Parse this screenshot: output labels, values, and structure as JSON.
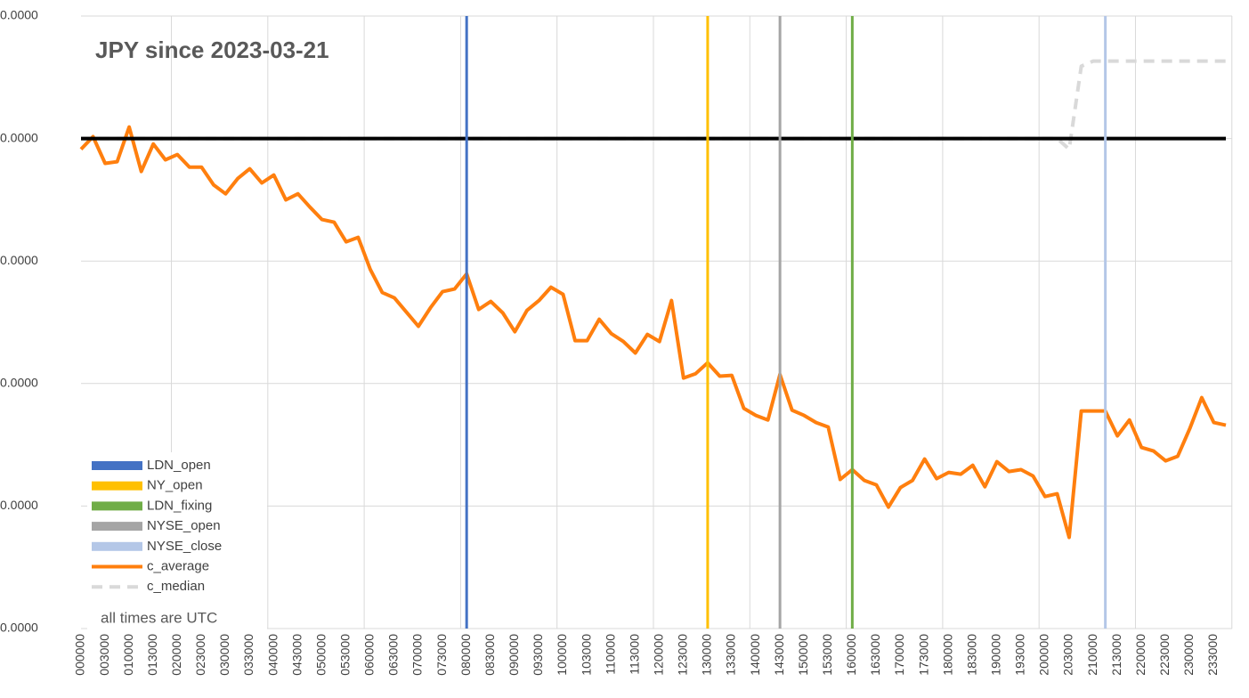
{
  "chart_data": {
    "type": "line",
    "title": "JPY since 2023-03-21",
    "annotation": "all times are UTC",
    "categories": [
      "000000",
      null,
      "003000",
      null,
      "010000",
      null,
      "013000",
      null,
      "020000",
      null,
      "023000",
      null,
      "030000",
      null,
      "033000",
      null,
      "040000",
      null,
      "043000",
      null,
      "050000",
      null,
      "053000",
      null,
      "060000",
      null,
      "063000",
      null,
      "070000",
      null,
      "073000",
      null,
      "080000",
      null,
      "083000",
      null,
      "090000",
      null,
      "093000",
      null,
      "100000",
      null,
      "103000",
      null,
      "110000",
      null,
      "113000",
      null,
      "120000",
      null,
      "123000",
      null,
      "130000",
      null,
      "133000",
      null,
      "140000",
      null,
      "143000",
      null,
      "150000",
      null,
      "153000",
      null,
      "160000",
      null,
      "163000",
      null,
      "170000",
      null,
      "173000",
      null,
      "180000",
      null,
      "183000",
      null,
      "190000",
      null,
      "193000",
      null,
      "200000",
      null,
      "203000",
      null,
      "210000",
      null,
      "213000",
      null,
      "220000",
      null,
      "223000",
      null,
      "230000",
      null,
      "233000",
      null
    ],
    "ylim": [
      -4e-05,
      1e-05
    ],
    "yticks": [
      {
        "value": 1e-05,
        "label": "0.0000"
      },
      {
        "value": 0,
        "label": "0.0000"
      },
      {
        "value": -1e-05,
        "label": "0.0000"
      },
      {
        "value": -2e-05,
        "label": "0.0000"
      },
      {
        "value": -3e-05,
        "label": "0.0000"
      },
      {
        "value": -4e-05,
        "label": "0.0000"
      }
    ],
    "grid": true,
    "reference_line": {
      "value": 0,
      "color": "#000000"
    },
    "legend": "bottom-left",
    "series": [
      {
        "name": "LDN_open",
        "kind": "bar",
        "color": "#4472c4",
        "values": [
          null,
          null,
          null,
          null,
          null,
          null,
          null,
          null,
          null,
          null,
          null,
          null,
          null,
          null,
          null,
          null,
          null,
          null,
          null,
          null,
          null,
          null,
          null,
          null,
          null,
          null,
          null,
          null,
          null,
          null,
          null,
          null,
          1e-05,
          null,
          null,
          null,
          null,
          null,
          null,
          null,
          null,
          null,
          null,
          null,
          null,
          null,
          null,
          null,
          null,
          null,
          null,
          null,
          null,
          null,
          null,
          null,
          null,
          null,
          null,
          null,
          null,
          null,
          null,
          null,
          null,
          null,
          null,
          null,
          null,
          null,
          null,
          null,
          null,
          null,
          null,
          null,
          null,
          null,
          null,
          null,
          null,
          null,
          null,
          null,
          null,
          null,
          null,
          null,
          null,
          null,
          null,
          null,
          null,
          null,
          null,
          null
        ]
      },
      {
        "name": "NY_open",
        "kind": "bar",
        "color": "#ffc000",
        "values": [
          null,
          null,
          null,
          null,
          null,
          null,
          null,
          null,
          null,
          null,
          null,
          null,
          null,
          null,
          null,
          null,
          null,
          null,
          null,
          null,
          null,
          null,
          null,
          null,
          null,
          null,
          null,
          null,
          null,
          null,
          null,
          null,
          null,
          null,
          null,
          null,
          null,
          null,
          null,
          null,
          null,
          null,
          null,
          null,
          null,
          null,
          null,
          null,
          null,
          null,
          null,
          null,
          1e-05,
          null,
          null,
          null,
          null,
          null,
          null,
          null,
          null,
          null,
          null,
          null,
          null,
          null,
          null,
          null,
          null,
          null,
          null,
          null,
          null,
          null,
          null,
          null,
          null,
          null,
          null,
          null,
          null,
          null,
          null,
          null,
          null,
          null,
          null,
          null,
          null,
          null,
          null,
          null,
          null,
          null,
          null,
          null
        ]
      },
      {
        "name": "LDN_fixing",
        "kind": "bar",
        "color": "#70ad47",
        "values": [
          null,
          null,
          null,
          null,
          null,
          null,
          null,
          null,
          null,
          null,
          null,
          null,
          null,
          null,
          null,
          null,
          null,
          null,
          null,
          null,
          null,
          null,
          null,
          null,
          null,
          null,
          null,
          null,
          null,
          null,
          null,
          null,
          null,
          null,
          null,
          null,
          null,
          null,
          null,
          null,
          null,
          null,
          null,
          null,
          null,
          null,
          null,
          null,
          null,
          null,
          null,
          null,
          null,
          null,
          null,
          null,
          null,
          null,
          null,
          null,
          null,
          null,
          null,
          null,
          1e-05,
          null,
          null,
          null,
          null,
          null,
          null,
          null,
          null,
          null,
          null,
          null,
          null,
          null,
          null,
          null,
          null,
          null,
          null,
          null,
          null,
          null,
          null,
          null,
          null,
          null,
          null,
          null,
          null,
          null,
          null,
          null
        ]
      },
      {
        "name": "NYSE_open",
        "kind": "bar",
        "color": "#a5a5a5",
        "values": [
          null,
          null,
          null,
          null,
          null,
          null,
          null,
          null,
          null,
          null,
          null,
          null,
          null,
          null,
          null,
          null,
          null,
          null,
          null,
          null,
          null,
          null,
          null,
          null,
          null,
          null,
          null,
          null,
          null,
          null,
          null,
          null,
          null,
          null,
          null,
          null,
          null,
          null,
          null,
          null,
          null,
          null,
          null,
          null,
          null,
          null,
          null,
          null,
          null,
          null,
          null,
          null,
          null,
          null,
          null,
          null,
          null,
          null,
          1e-05,
          null,
          null,
          null,
          null,
          null,
          null,
          null,
          null,
          null,
          null,
          null,
          null,
          null,
          null,
          null,
          null,
          null,
          null,
          null,
          null,
          null,
          null,
          null,
          null,
          null,
          null,
          null,
          null,
          null,
          null,
          null,
          null,
          null,
          null,
          null,
          null,
          null
        ]
      },
      {
        "name": "NYSE_close",
        "kind": "bar",
        "color": "#b4c7e7",
        "values": [
          null,
          null,
          null,
          null,
          null,
          null,
          null,
          null,
          null,
          null,
          null,
          null,
          null,
          null,
          null,
          null,
          null,
          null,
          null,
          null,
          null,
          null,
          null,
          null,
          null,
          null,
          null,
          null,
          null,
          null,
          null,
          null,
          null,
          null,
          null,
          null,
          null,
          null,
          null,
          null,
          null,
          null,
          null,
          null,
          null,
          null,
          null,
          null,
          null,
          null,
          null,
          null,
          null,
          null,
          null,
          null,
          null,
          null,
          null,
          null,
          null,
          null,
          null,
          null,
          null,
          null,
          null,
          null,
          null,
          null,
          null,
          null,
          null,
          null,
          null,
          null,
          null,
          null,
          null,
          null,
          null,
          null,
          null,
          null,
          null,
          1e-05,
          null,
          null,
          null,
          null,
          null,
          null,
          null,
          null,
          null,
          null
        ]
      },
      {
        "name": "c_average",
        "kind": "line",
        "color": "#ff7f0e",
        "values": [
          -8.7e-07,
          1.5e-07,
          -2.03e-06,
          -1.89e-06,
          9.4e-07,
          -2.69e-06,
          -4.4e-07,
          -1.74e-06,
          -1.31e-06,
          -2.33e-06,
          -2.33e-06,
          -3.78e-06,
          -4.51e-06,
          -3.27e-06,
          -2.47e-06,
          -3.63e-06,
          -2.98e-06,
          -5.01e-06,
          -4.51e-06,
          -5.6e-06,
          -6.61e-06,
          -6.83e-06,
          -8.43e-06,
          -8.07e-06,
          -1.068e-05,
          -1.257e-05,
          -1.301e-05,
          -1.417e-05,
          -1.533e-05,
          -1.381e-05,
          -1.25e-05,
          -1.228e-05,
          -1.105e-05,
          -1.395e-05,
          -1.33e-05,
          -1.424e-05,
          -1.577e-05,
          -1.403e-05,
          -1.323e-05,
          -1.214e-05,
          -1.272e-05,
          -1.65e-05,
          -1.65e-05,
          -1.475e-05,
          -1.592e-05,
          -1.657e-05,
          -1.751e-05,
          -1.599e-05,
          -1.657e-05,
          -1.323e-05,
          -1.955e-05,
          -1.919e-05,
          -1.831e-05,
          -1.94e-05,
          -1.933e-05,
          -2.202e-05,
          -2.26e-05,
          -2.297e-05,
          -1.926e-05,
          -2.217e-05,
          -2.26e-05,
          -2.318e-05,
          -2.355e-05,
          -2.783e-05,
          -2.703e-05,
          -2.791e-05,
          -2.827e-05,
          -3.009e-05,
          -2.849e-05,
          -2.791e-05,
          -2.616e-05,
          -2.776e-05,
          -2.725e-05,
          -2.74e-05,
          -2.667e-05,
          -2.842e-05,
          -2.638e-05,
          -2.718e-05,
          -2.703e-05,
          -2.754e-05,
          -2.922e-05,
          -2.9e-05,
          -3.256e-05,
          -2.224e-05,
          -2.224e-05,
          -2.224e-05,
          -2.427e-05,
          -2.297e-05,
          -2.522e-05,
          -2.551e-05,
          -2.631e-05,
          -2.594e-05,
          -2.369e-05,
          -2.115e-05,
          -2.318e-05,
          -2.34e-05
        ]
      },
      {
        "name": "c_median",
        "kind": "line",
        "dashed": true,
        "color": "#d9d9d9",
        "values": [
          0,
          0,
          0,
          0,
          0,
          0,
          0,
          0,
          0,
          0,
          0,
          0,
          0,
          0,
          0,
          0,
          0,
          0,
          0,
          0,
          0,
          0,
          0,
          0,
          0,
          0,
          0,
          0,
          0,
          0,
          0,
          0,
          0,
          0,
          0,
          0,
          0,
          0,
          0,
          0,
          0,
          0,
          0,
          0,
          0,
          0,
          0,
          0,
          0,
          0,
          0,
          0,
          0,
          0,
          0,
          0,
          0,
          0,
          0,
          0,
          0,
          0,
          0,
          0,
          0,
          0,
          0,
          0,
          0,
          0,
          0,
          0,
          0,
          0,
          0,
          0,
          0,
          0,
          0,
          0,
          0,
          0,
          -8.7e-07,
          5.9e-06,
          6.32e-06,
          6.32e-06,
          6.32e-06,
          6.32e-06,
          6.32e-06,
          6.32e-06,
          6.32e-06,
          6.32e-06,
          6.32e-06,
          6.32e-06,
          6.32e-06,
          6.32e-06
        ]
      }
    ]
  }
}
